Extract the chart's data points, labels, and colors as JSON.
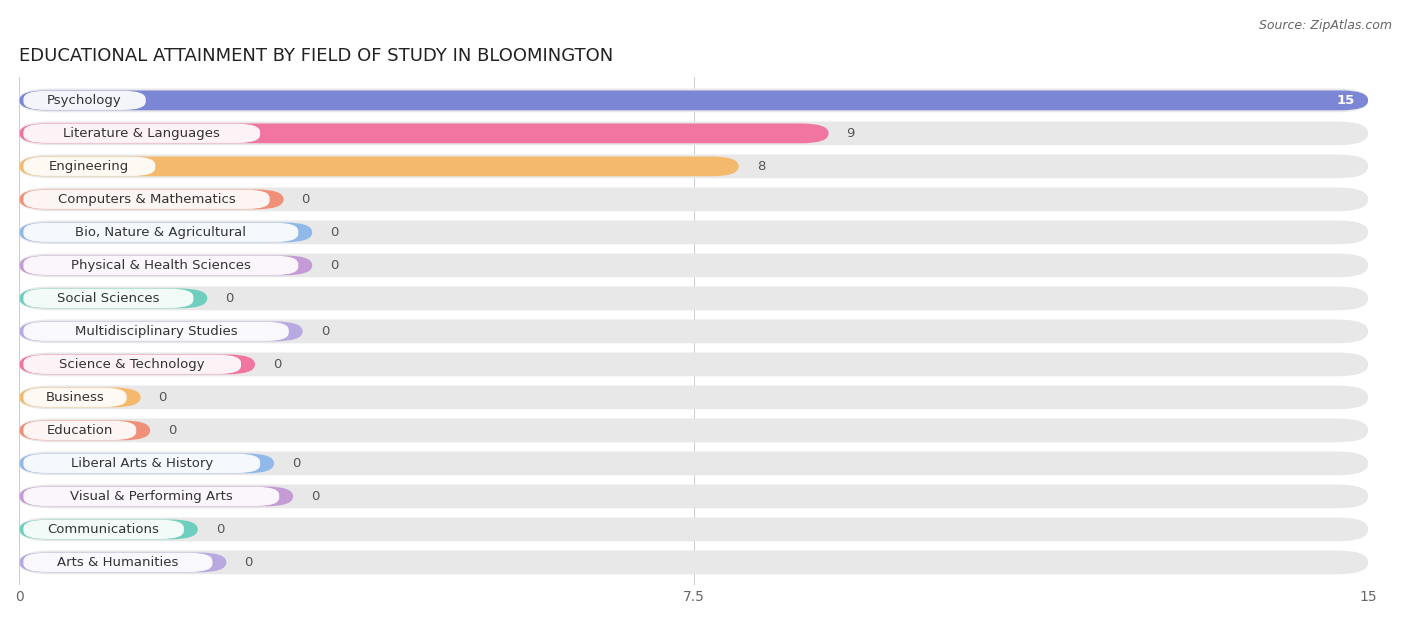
{
  "title": "EDUCATIONAL ATTAINMENT BY FIELD OF STUDY IN BLOOMINGTON",
  "source": "Source: ZipAtlas.com",
  "categories": [
    "Psychology",
    "Literature & Languages",
    "Engineering",
    "Computers & Mathematics",
    "Bio, Nature & Agricultural",
    "Physical & Health Sciences",
    "Social Sciences",
    "Multidisciplinary Studies",
    "Science & Technology",
    "Business",
    "Education",
    "Liberal Arts & History",
    "Visual & Performing Arts",
    "Communications",
    "Arts & Humanities"
  ],
  "values": [
    15,
    9,
    8,
    0,
    0,
    0,
    0,
    0,
    0,
    0,
    0,
    0,
    0,
    0,
    0
  ],
  "bar_colors": [
    "#7b86d4",
    "#f075a0",
    "#f5b96e",
    "#f0907a",
    "#90b8e8",
    "#c49bd4",
    "#6ecfbe",
    "#b8aae0",
    "#f075a0",
    "#f5b96e",
    "#f0907a",
    "#90b8e8",
    "#c49bd4",
    "#6ecfbe",
    "#b8aae0"
  ],
  "xlim": [
    0,
    15
  ],
  "xticks": [
    0,
    7.5,
    15
  ],
  "background_color": "#ffffff",
  "bar_bg_color": "#e8e8e8",
  "title_fontsize": 13,
  "label_fontsize": 9.5,
  "tick_fontsize": 10,
  "source_fontsize": 9
}
